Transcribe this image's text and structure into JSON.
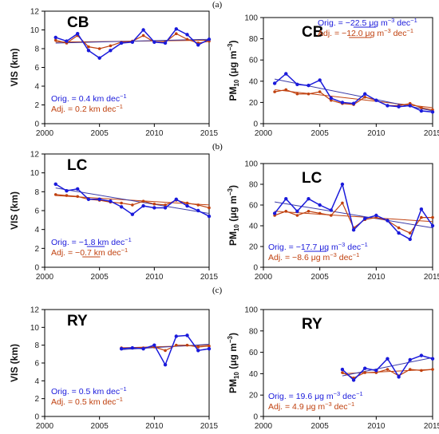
{
  "panel_labels": [
    "(a)",
    "(b)",
    "(c)"
  ],
  "colors": {
    "orig": "#1a1adb",
    "adj": "#c0410f",
    "trend_orig": "#3a3aa8",
    "trend_adj": "#c0410f",
    "axis": "#000000"
  },
  "chart_data": [
    {
      "type": "line",
      "panel": "a",
      "site": "CB",
      "quantity": "VIS",
      "ylabel": "VIS (km)",
      "ylim": [
        0,
        12
      ],
      "yticks": [
        0,
        2,
        4,
        6,
        8,
        10,
        12
      ],
      "xlim": [
        2000,
        2015
      ],
      "xticks": [
        2000,
        2005,
        2010,
        2015
      ],
      "x": [
        2001,
        2002,
        2003,
        2004,
        2005,
        2006,
        2007,
        2008,
        2009,
        2010,
        2011,
        2012,
        2013,
        2014,
        2015
      ],
      "series": [
        {
          "key": "orig",
          "values": [
            9.2,
            8.8,
            9.6,
            7.8,
            7.0,
            7.8,
            8.6,
            8.7,
            10.0,
            8.7,
            8.6,
            10.1,
            9.5,
            8.4,
            9.0
          ]
        },
        {
          "key": "adj",
          "values": [
            8.9,
            8.6,
            9.4,
            8.2,
            8.0,
            8.3,
            8.7,
            8.8,
            9.4,
            8.7,
            8.7,
            9.6,
            9.0,
            8.6,
            8.8
          ]
        }
      ],
      "trend": {
        "orig": [
          8.6,
          9.0
        ],
        "adj": [
          8.7,
          8.9
        ]
      },
      "annotations": {
        "orig": "Orig. = 0.4 km dec",
        "orig_sup": "−1",
        "adj": "Adj. = 0.2 km dec",
        "adj_sup": "−1",
        "orig_underline": "",
        "adj_underline": ""
      }
    },
    {
      "type": "line",
      "panel": "a",
      "site": "CB",
      "quantity": "PM10",
      "ylabel": "PM10 (μg m−3)",
      "ylim": [
        0,
        100
      ],
      "yticks": [
        0,
        20,
        40,
        60,
        80,
        100
      ],
      "xlim": [
        2000,
        2015
      ],
      "xticks": [
        2000,
        2005,
        2010,
        2015
      ],
      "x": [
        2001,
        2002,
        2003,
        2004,
        2005,
        2006,
        2007,
        2008,
        2009,
        2010,
        2011,
        2012,
        2013,
        2014,
        2015
      ],
      "series": [
        {
          "key": "orig",
          "values": [
            38,
            47,
            37,
            36,
            41,
            24,
            20,
            19,
            28,
            22,
            17,
            16,
            17,
            12,
            11
          ]
        },
        {
          "key": "adj",
          "values": [
            30,
            32,
            28,
            28,
            30,
            22,
            19,
            18,
            25,
            22,
            17,
            17,
            19,
            15,
            13
          ]
        }
      ],
      "trend": {
        "orig": [
          42,
          12
        ],
        "adj": [
          32,
          15
        ]
      },
      "annotations": {
        "orig": "Orig. = −22.5 μg m",
        "orig_sup": "−3",
        "orig_tail": " dec",
        "orig_tail_sup": "−1",
        "adj": "Adj. = −12.0 μg m",
        "adj_sup": "−3",
        "adj_tail": " dec",
        "adj_tail_sup": "−1",
        "orig_underline": "−22.5",
        "adj_underline": "−12.0"
      }
    },
    {
      "type": "line",
      "panel": "b",
      "site": "LC",
      "quantity": "VIS",
      "ylabel": "VIS (km)",
      "ylim": [
        0,
        12
      ],
      "yticks": [
        0,
        2,
        4,
        6,
        8,
        10,
        12
      ],
      "xlim": [
        2000,
        2015
      ],
      "xticks": [
        2000,
        2005,
        2010,
        2015
      ],
      "x": [
        2001,
        2002,
        2003,
        2004,
        2005,
        2006,
        2007,
        2008,
        2009,
        2010,
        2011,
        2012,
        2013,
        2014,
        2015
      ],
      "series": [
        {
          "key": "orig",
          "values": [
            8.8,
            8.1,
            8.3,
            7.2,
            7.2,
            7.0,
            6.4,
            5.6,
            6.5,
            6.3,
            6.3,
            7.2,
            6.5,
            6.0,
            5.4
          ]
        },
        {
          "key": "adj",
          "values": [
            7.7,
            7.6,
            7.5,
            7.2,
            7.1,
            6.9,
            6.8,
            6.6,
            7.0,
            6.7,
            6.6,
            7.1,
            6.8,
            6.6,
            6.3
          ]
        }
      ],
      "trend": {
        "orig": [
          8.4,
          5.7
        ],
        "adj": [
          7.6,
          6.6
        ]
      },
      "annotations": {
        "orig": "Orig. = −1.8 km dec",
        "orig_sup": "−1",
        "adj": "Adj. = −0.7 km dec",
        "adj_sup": "−1",
        "orig_underline": "−1.8",
        "adj_underline": "−0.7"
      }
    },
    {
      "type": "line",
      "panel": "b",
      "site": "LC",
      "quantity": "PM10",
      "ylabel": "PM10 (μg m−3)",
      "ylim": [
        0,
        100
      ],
      "yticks": [
        0,
        20,
        40,
        60,
        80,
        100
      ],
      "xlim": [
        2000,
        2015
      ],
      "xticks": [
        2000,
        2005,
        2010,
        2015
      ],
      "x": [
        2001,
        2002,
        2003,
        2004,
        2005,
        2006,
        2007,
        2008,
        2009,
        2010,
        2011,
        2012,
        2013,
        2014,
        2015
      ],
      "series": [
        {
          "key": "orig",
          "values": [
            52,
            66,
            54,
            66,
            60,
            55,
            80,
            36,
            47,
            50,
            45,
            33,
            27,
            56,
            40
          ]
        },
        {
          "key": "adj",
          "values": [
            50,
            54,
            50,
            54,
            52,
            50,
            62,
            38,
            46,
            48,
            45,
            38,
            33,
            48,
            48
          ]
        }
      ],
      "trend": {
        "orig": [
          63,
          38
        ],
        "adj": [
          54,
          44
        ]
      },
      "annotations": {
        "orig": "Orig. = −17.7 μg m",
        "orig_sup": "−3",
        "orig_tail": " dec",
        "orig_tail_sup": "−1",
        "adj": "Adj. = −8.6 μg m",
        "adj_sup": "−3",
        "adj_tail": " dec",
        "adj_tail_sup": "−1",
        "orig_underline": "−17.7",
        "adj_underline": ""
      }
    },
    {
      "type": "line",
      "panel": "c",
      "site": "RY",
      "quantity": "VIS",
      "ylabel": "VIS (km)",
      "ylim": [
        0,
        12
      ],
      "yticks": [
        0,
        2,
        4,
        6,
        8,
        10,
        12
      ],
      "xlim": [
        2000,
        2015
      ],
      "xticks": [
        2000,
        2005,
        2010,
        2015
      ],
      "x": [
        2007,
        2008,
        2009,
        2010,
        2011,
        2012,
        2013,
        2014,
        2015
      ],
      "series": [
        {
          "key": "orig",
          "values": [
            7.6,
            7.7,
            7.6,
            8.0,
            5.8,
            9.0,
            9.1,
            7.4,
            7.6
          ]
        },
        {
          "key": "adj",
          "values": [
            7.7,
            7.7,
            7.7,
            7.8,
            7.4,
            8.0,
            8.0,
            7.8,
            7.9
          ]
        }
      ],
      "trend": {
        "orig": [
          7.5,
          8.1
        ],
        "adj": [
          7.7,
          8.0
        ]
      },
      "annotations": {
        "orig": "Orig. = 0.5 km dec",
        "orig_sup": "−1",
        "adj": "Adj. = 0.5 km dec",
        "adj_sup": "−1",
        "orig_underline": "",
        "adj_underline": ""
      }
    },
    {
      "type": "line",
      "panel": "c",
      "site": "RY",
      "quantity": "PM10",
      "ylabel": "PM10 (μg m−3)",
      "ylim": [
        0,
        100
      ],
      "yticks": [
        0,
        20,
        40,
        60,
        80,
        100
      ],
      "xlim": [
        2000,
        2015
      ],
      "xticks": [
        2000,
        2005,
        2010,
        2015
      ],
      "x": [
        2007,
        2008,
        2009,
        2010,
        2011,
        2012,
        2013,
        2014,
        2015
      ],
      "series": [
        {
          "key": "orig",
          "values": [
            44,
            34,
            45,
            43,
            54,
            37,
            53,
            57,
            54
          ]
        },
        {
          "key": "adj",
          "values": [
            41,
            36,
            41,
            41,
            44,
            38,
            44,
            43,
            44
          ]
        }
      ],
      "trend": {
        "orig": [
          38,
          55
        ],
        "adj": [
          40,
          44
        ]
      },
      "annotations": {
        "orig": "Orig. = 19.6 μg m",
        "orig_sup": "−3",
        "orig_tail": " dec",
        "orig_tail_sup": "−1",
        "adj": "Adj. = 4.9 μg m",
        "adj_sup": "−3",
        "adj_tail": " dec",
        "adj_tail_sup": "−1",
        "orig_underline": "",
        "adj_underline": ""
      }
    }
  ]
}
